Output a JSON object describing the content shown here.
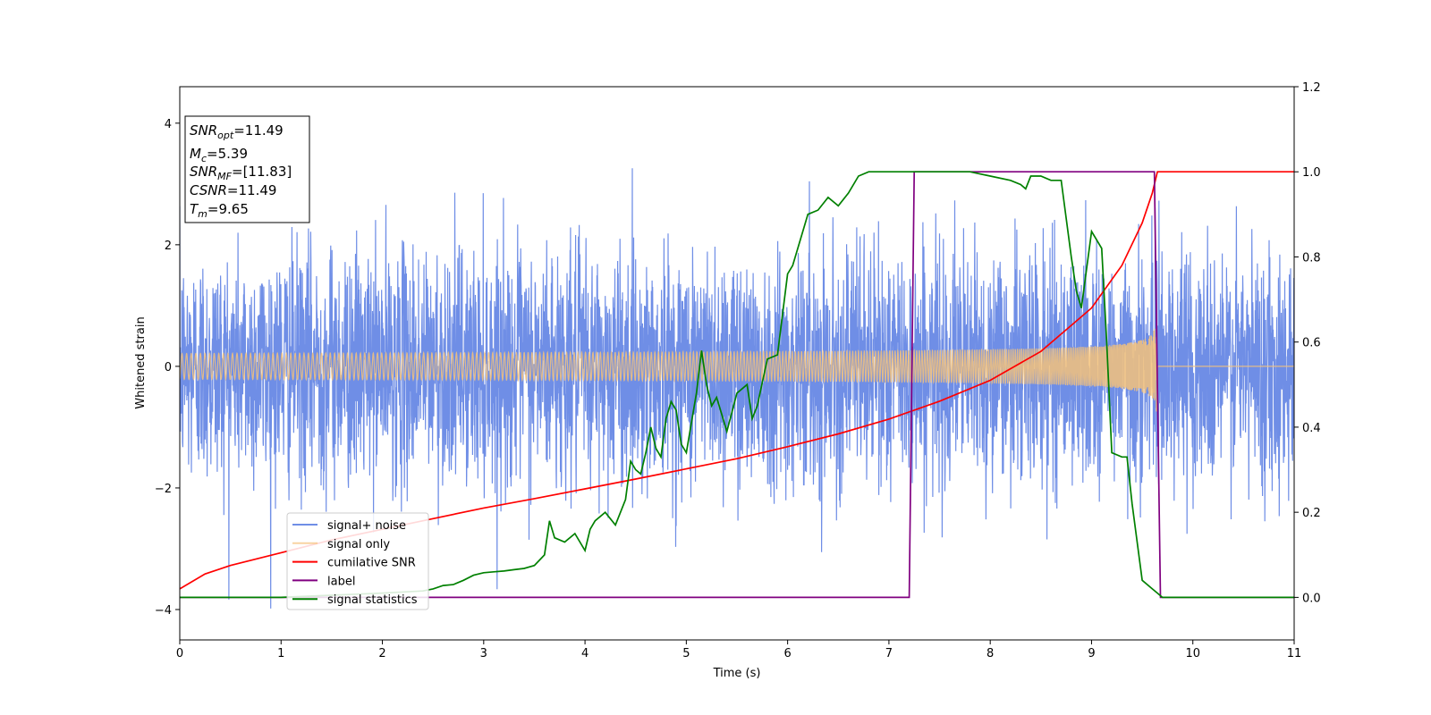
{
  "chart_data": {
    "type": "line",
    "title": "",
    "xlabel": "Time (s)",
    "ylabel": "Whitened strain",
    "y2label": "",
    "xlim": [
      0,
      11
    ],
    "ylim": [
      -4.5,
      4.6
    ],
    "y2lim": [
      -0.1,
      1.2
    ],
    "x_ticks": [
      "0",
      "1",
      "2",
      "3",
      "4",
      "5",
      "6",
      "7",
      "8",
      "9",
      "10",
      "11"
    ],
    "y_ticks": [
      "4",
      "2",
      "0",
      "−2",
      "−4"
    ],
    "y2_ticks": [
      "1.2",
      "1.0",
      "0.8",
      "0.6",
      "0.4",
      "0.2",
      "0.0"
    ],
    "grid": false,
    "legend_placement": "lower-left",
    "info_box": {
      "lines": [
        {
          "main": "SNR",
          "sub": "opt",
          "value": "=11.49"
        },
        {
          "main": "M",
          "sub": "c",
          "value": "=5.39"
        },
        {
          "main": "SNR",
          "sub": "MF",
          "value": "=[11.83]"
        },
        {
          "main": "CSNR",
          "sub": "",
          "value": "=11.49"
        },
        {
          "main": "T",
          "sub": "m",
          "value": "=9.65"
        }
      ]
    },
    "series": [
      {
        "name": "signal+ noise",
        "axis": "left",
        "color": "#6f8ee6",
        "kind": "noise",
        "std": 0.95,
        "range": [
          -4.1,
          4.2
        ],
        "x_range": [
          0,
          11
        ]
      },
      {
        "name": "signal only",
        "axis": "left",
        "color": "#f5c27a",
        "kind": "chirp",
        "amplitude_start": 0.09,
        "amplitude_at_merger": 0.85,
        "merger_time": 9.65,
        "x_range": [
          0,
          11
        ]
      },
      {
        "name": "cumilative SNR",
        "axis": "right",
        "color": "#ff0000",
        "x": [
          0,
          0.25,
          0.5,
          1,
          1.5,
          2,
          2.5,
          3,
          3.5,
          4,
          4.5,
          5,
          5.5,
          6,
          6.5,
          7,
          7.5,
          8,
          8.5,
          9,
          9.3,
          9.5,
          9.6,
          9.65,
          11
        ],
        "y": [
          0.02,
          0.055,
          0.075,
          0.105,
          0.135,
          0.16,
          0.185,
          0.21,
          0.232,
          0.255,
          0.278,
          0.302,
          0.326,
          0.354,
          0.384,
          0.419,
          0.461,
          0.51,
          0.578,
          0.68,
          0.78,
          0.88,
          0.95,
          1.0,
          1.0
        ]
      },
      {
        "name": "label",
        "axis": "right",
        "color": "#800080",
        "x": [
          0,
          7.2,
          7.25,
          9.62,
          9.68,
          11
        ],
        "y": [
          0,
          0,
          1,
          1,
          0,
          0
        ]
      },
      {
        "name": "signal statistics",
        "axis": "right",
        "color": "#008000",
        "x": [
          0,
          1.0,
          2.0,
          2.4,
          2.5,
          2.6,
          2.7,
          2.8,
          2.9,
          3.0,
          3.1,
          3.2,
          3.3,
          3.4,
          3.5,
          3.6,
          3.65,
          3.7,
          3.8,
          3.9,
          4.0,
          4.05,
          4.1,
          4.2,
          4.3,
          4.4,
          4.45,
          4.5,
          4.55,
          4.6,
          4.65,
          4.7,
          4.75,
          4.8,
          4.85,
          4.9,
          4.95,
          5.0,
          5.1,
          5.15,
          5.2,
          5.25,
          5.3,
          5.4,
          5.5,
          5.6,
          5.65,
          5.7,
          5.8,
          5.9,
          6.0,
          6.05,
          6.1,
          6.2,
          6.3,
          6.4,
          6.5,
          6.6,
          6.7,
          6.8,
          6.9,
          7.0,
          7.2,
          7.4,
          7.6,
          7.8,
          8.0,
          8.2,
          8.3,
          8.35,
          8.4,
          8.5,
          8.6,
          8.7,
          8.8,
          8.85,
          8.9,
          9.0,
          9.1,
          9.15,
          9.2,
          9.3,
          9.35,
          9.4,
          9.5,
          9.6,
          9.65,
          9.7,
          10,
          11
        ],
        "y": [
          0.0,
          0.0,
          0.01,
          0.015,
          0.02,
          0.028,
          0.03,
          0.04,
          0.052,
          0.058,
          0.06,
          0.062,
          0.065,
          0.068,
          0.075,
          0.1,
          0.18,
          0.14,
          0.13,
          0.15,
          0.11,
          0.16,
          0.18,
          0.2,
          0.17,
          0.23,
          0.32,
          0.3,
          0.29,
          0.34,
          0.4,
          0.35,
          0.33,
          0.42,
          0.46,
          0.44,
          0.36,
          0.34,
          0.48,
          0.58,
          0.5,
          0.45,
          0.47,
          0.39,
          0.48,
          0.5,
          0.42,
          0.45,
          0.56,
          0.57,
          0.76,
          0.78,
          0.82,
          0.9,
          0.91,
          0.94,
          0.92,
          0.95,
          0.99,
          1.0,
          1.0,
          1.0,
          1.0,
          1.0,
          1.0,
          1.0,
          0.99,
          0.98,
          0.97,
          0.96,
          0.99,
          0.99,
          0.98,
          0.98,
          0.8,
          0.72,
          0.68,
          0.86,
          0.82,
          0.6,
          0.34,
          0.33,
          0.33,
          0.22,
          0.04,
          0.02,
          0.01,
          0.0,
          0.0,
          0.0
        ]
      }
    ]
  }
}
